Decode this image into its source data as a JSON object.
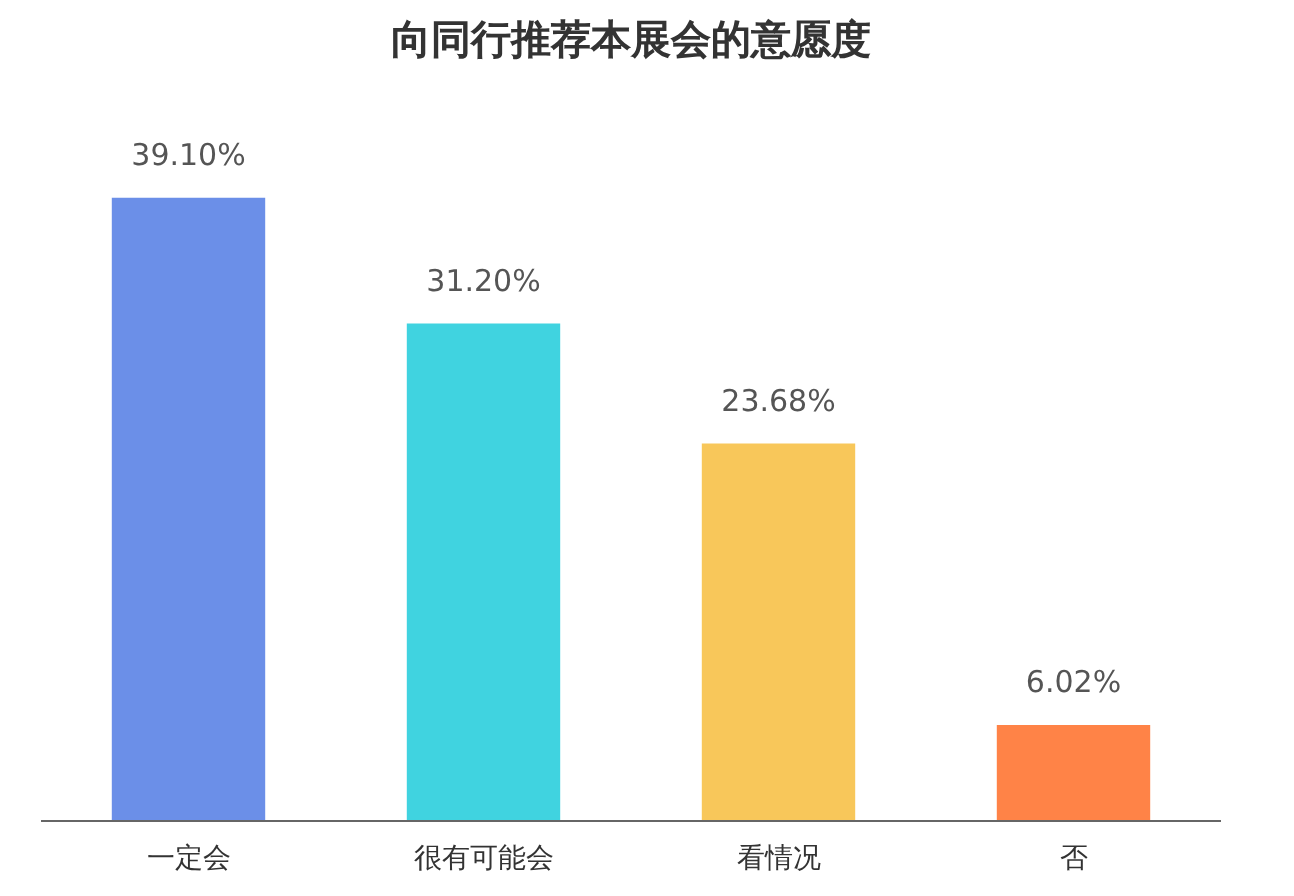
{
  "chart_data": {
    "type": "bar",
    "title": "向同行推荐本展会的意愿度",
    "categories": [
      "一定会",
      "很有可能会",
      "看情况",
      "否"
    ],
    "values": [
      39.1,
      31.2,
      23.68,
      6.02
    ],
    "colors": [
      "#6b8fe8",
      "#40d3e0",
      "#f8c75a",
      "#ff8347"
    ],
    "value_labels": [
      "39.10%",
      "31.20%",
      "23.68%",
      "6.02%"
    ]
  }
}
